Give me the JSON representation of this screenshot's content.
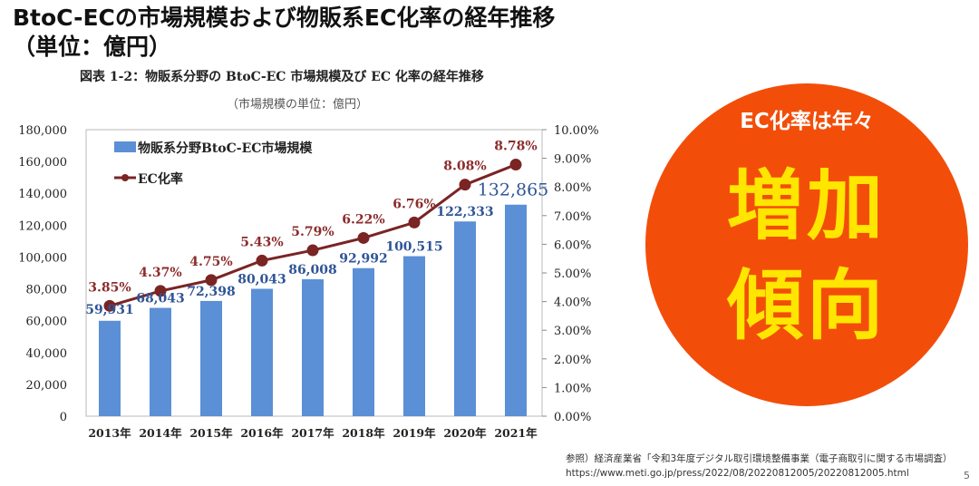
{
  "slide": {
    "title_line1": "BtoC-ECの市場規模および物販系EC化率の経年推移",
    "title_line2": "（単位：億円）",
    "callout": {
      "sub": "EC化率は年々",
      "line1": "増加",
      "line2": "傾向",
      "bg": "#f24e0a",
      "text_color": "#ffe600"
    },
    "source_line1": "参照）経済産業省「令和3年度デジタル取引環境整備事業（電子商取引に関する市場調査）",
    "source_line2": "https://www.meti.go.jp/press/2022/08/20220812005/20220812005.html",
    "page_number": "5"
  },
  "chart_data": {
    "type": "bar+line",
    "title": "図表 1-2：物販系分野の BtoC-EC 市場規模及び EC 化率の経年推移",
    "subtitle": "（市場規模の単位：億円）",
    "categories": [
      "2013年",
      "2014年",
      "2015年",
      "2016年",
      "2017年",
      "2018年",
      "2019年",
      "2020年",
      "2021年"
    ],
    "series": [
      {
        "name": "物販系分野BtoC-EC市場規模",
        "type": "bar",
        "axis": "left",
        "color": "#5b8fd6",
        "values": [
          59931,
          68043,
          72398,
          80043,
          86008,
          92992,
          100515,
          122333,
          132865
        ],
        "labels": [
          "59,931",
          "68,043",
          "72,398",
          "80,043",
          "86,008",
          "92,992",
          "100,515",
          "122,333",
          "132,865"
        ]
      },
      {
        "name": "EC化率",
        "type": "line",
        "axis": "right",
        "color": "#7a2424",
        "values": [
          3.85,
          4.37,
          4.75,
          5.43,
          5.79,
          6.22,
          6.76,
          8.08,
          8.78
        ],
        "labels": [
          "3.85%",
          "4.37%",
          "4.75%",
          "5.43%",
          "5.79%",
          "6.22%",
          "6.76%",
          "8.08%",
          "8.78%"
        ]
      }
    ],
    "y_left": {
      "range": [
        0,
        180000
      ],
      "ticks": [
        "0",
        "20,000",
        "40,000",
        "60,000",
        "80,000",
        "100,000",
        "120,000",
        "140,000",
        "160,000",
        "180,000"
      ]
    },
    "y_right": {
      "range": [
        0,
        10
      ],
      "ticks": [
        "0.00%",
        "1.00%",
        "2.00%",
        "3.00%",
        "4.00%",
        "5.00%",
        "6.00%",
        "7.00%",
        "8.00%",
        "9.00%",
        "10.00%"
      ]
    },
    "legend": "top-left",
    "grid": false
  }
}
